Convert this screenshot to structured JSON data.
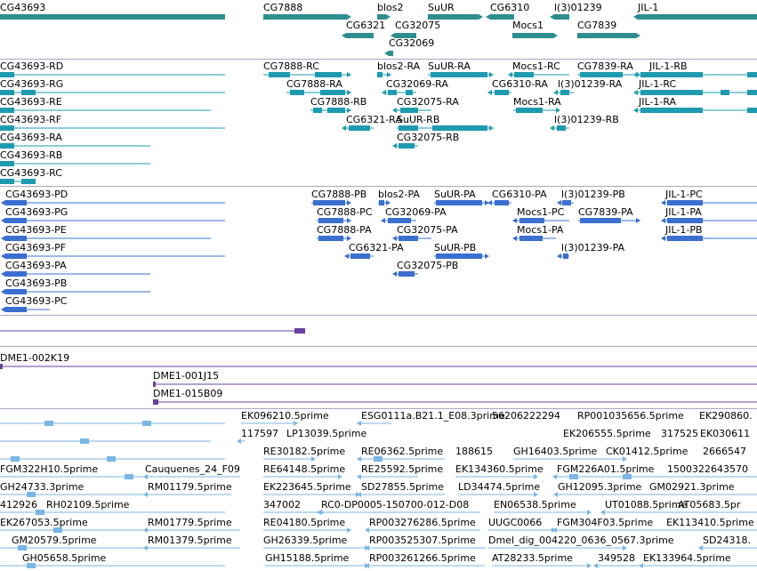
{
  "colors": {
    "gene": "#2e8e8e",
    "transcript_curated": "#1e9bb0",
    "transcript_predicted": "#3b6fd0",
    "clone": "#6a3fa0",
    "est": "#7ab6e6",
    "separator": "#a7a7c6"
  },
  "tracks": {
    "genes": {
      "labels": [
        "CG43693",
        "CG7888",
        "blos2",
        "SuUR",
        "CG6310",
        "l(3)01239",
        "JIL-1",
        "CG6321",
        "CG32075",
        "Mocs1",
        "CG7839",
        "CG32069"
      ]
    },
    "transcripts_curated": {
      "labels": [
        "CG43693-RD",
        "CG7888-RC",
        "blos2-RA",
        "SuUR-RA",
        "Mocs1-RC",
        "CG7839-RA",
        "JIL-1-RB",
        "CG43693-RG",
        "CG7888-RA",
        "CG32069-RA",
        "CG6310-RA",
        "l(3)01239-RA",
        "JIL-1-RC",
        "CG43693-RE",
        "CG7888-RB",
        "CG32075-RA",
        "Mocs1-RA",
        "JIL-1-RA",
        "CG43693-RF",
        "CG6321-RA",
        "SuUR-RB",
        "l(3)01239-RB",
        "CG43693-RA",
        "CG32075-RB",
        "CG43693-RB",
        "CG43693-RC"
      ]
    },
    "transcripts_predicted": {
      "labels": [
        "CG43693-PD",
        "CG7888-PB",
        "blos2-PA",
        "SuUR-PA",
        "CG6310-PA",
        "l(3)01239-PB",
        "JIL-1-PC",
        "CG43693-PG",
        "CG7888-PC",
        "CG32069-PA",
        "Mocs1-PC",
        "CG7839-PA",
        "JIL-1-PA",
        "CG43693-PE",
        "CG7888-PA",
        "CG32075-PA",
        "Mocs1-PA",
        "JIL-1-PB",
        "CG43693-PF",
        "CG6321-PA",
        "SuUR-PB",
        "l(3)01239-PA",
        "CG43693-PA",
        "CG32075-PB",
        "CG43693-PB",
        "CG43693-PC"
      ]
    },
    "clones": {
      "labels": [
        "DME1-002K19",
        "DME1-001J15",
        "DME1-015B09"
      ]
    },
    "ests": {
      "labels": [
        "EK096210.5prime",
        "ESG0111a.B21.1_E08.3prime",
        "56206222294",
        "RP001035656.5prime",
        "EK290860.",
        "117597",
        "LP13039.5prime",
        "EK206555.5prime",
        "317525",
        "EK030611",
        "RE30182.5prime",
        "RE06362.5prime",
        "188615",
        "GH16403.5prime",
        "CK01412.5prime",
        "2666547",
        "FGM322H10.5prime",
        "Cauquenes_24_F09",
        "RE64148.5prime",
        "RE25592.5prime",
        "EK134360.5prime",
        "FGM226A01.5prime",
        "1500322643570",
        "GH24733.3prime",
        "RM01179.5prime",
        "EK223645.5prime",
        "SD27855.5prime",
        "LD34474.5prime",
        "GH12095.3prime",
        "GM02921.3prime",
        "412926",
        "RH02109.5prime",
        "347002",
        "RC0-DP0005-150700-012-D08",
        "EN06538.5prime",
        "UT01088.5prime",
        "AT05683.5pr",
        "EK267053.5prime",
        "RM01779.5prime",
        "RE04180.5prime",
        "RP003276286.5prime",
        "UUGC0066",
        "FGM304F03.5prime",
        "EK113410.5prime",
        "GM20579.5prime",
        "RM01379.5prime",
        "GH26339.5prime",
        "RP003525307.5prime",
        "Dmel_dig_004220_0636_0567.3prime",
        "SD24318.",
        "GH05658.5prime",
        "GH15188.5prime",
        "RP003261266.5prime",
        "AT28233.5prime",
        "349528",
        "EK133964.5prime"
      ]
    }
  }
}
